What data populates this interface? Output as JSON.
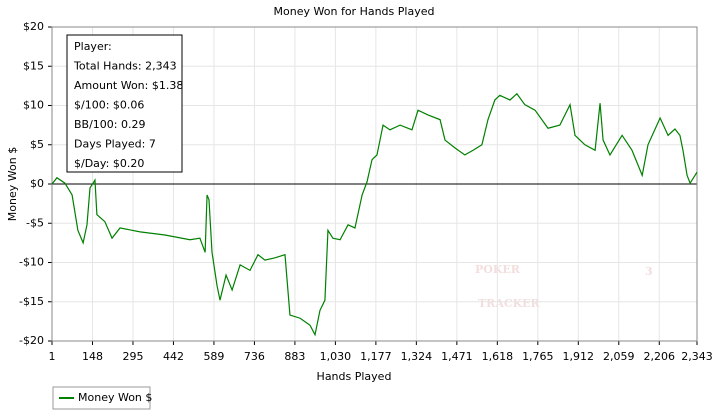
{
  "chart_data": {
    "type": "line",
    "title": "Money Won for Hands Played",
    "x_label": "Hands Played",
    "y_label": "Money Won $",
    "xlim": [
      1,
      2343
    ],
    "xticks": [
      1,
      148,
      295,
      442,
      589,
      736,
      883,
      {
        "value": 1030,
        "label": "1,030"
      },
      {
        "value": 1177,
        "label": "1,177"
      },
      {
        "value": 1324,
        "label": "1,324"
      },
      {
        "value": 1471,
        "label": "1,471"
      },
      {
        "value": 1618,
        "label": "1,618"
      },
      {
        "value": 1765,
        "label": "1,765"
      },
      {
        "value": 1912,
        "label": "1,912"
      },
      {
        "value": 2059,
        "label": "2,059"
      },
      {
        "value": 2206,
        "label": "2,206"
      },
      {
        "value": 2343,
        "label": "2,343"
      }
    ],
    "ylim": [
      -20,
      20
    ],
    "yticks": [
      {
        "value": 20,
        "label": "$20"
      },
      {
        "value": 15,
        "label": "$15"
      },
      {
        "value": 10,
        "label": "$10"
      },
      {
        "value": 5,
        "label": "$5"
      },
      {
        "value": 0,
        "label": "$0"
      },
      {
        "value": -5,
        "label": "-$5"
      },
      {
        "value": -10,
        "label": "-$10"
      },
      {
        "value": -15,
        "label": "-$15"
      },
      {
        "value": -20,
        "label": "-$20"
      }
    ],
    "grid": true,
    "info_box": [
      "Player:",
      "Total Hands: 2,343",
      "Amount Won: $1.38",
      "$/100: $0.06",
      "BB/100: 0.29",
      "Days Played: 7",
      "$/Day: $0.20"
    ],
    "watermark": [
      "POKER",
      "TRACKER",
      "3"
    ],
    "x": [
      1,
      19,
      48,
      74,
      95,
      114,
      128,
      139,
      157,
      164,
      193,
      219,
      248,
      321,
      411,
      502,
      538,
      557,
      564,
      571,
      582,
      600,
      611,
      633,
      655,
      684,
      720,
      749,
      774,
      811,
      847,
      865,
      902,
      938,
      956,
      974,
      992,
      1003,
      1021,
      1047,
      1076,
      1101,
      1127,
      1145,
      1163,
      1181,
      1203,
      1228,
      1265,
      1308,
      1330,
      1366,
      1410,
      1428,
      1464,
      1500,
      1530,
      1562,
      1584,
      1609,
      1627,
      1664,
      1689,
      1718,
      1755,
      1802,
      1845,
      1882,
      1900,
      1936,
      1973,
      1991,
      2002,
      2027,
      2071,
      2107,
      2144,
      2165,
      2209,
      2238,
      2263,
      2281,
      2292,
      2307,
      2318,
      2343
    ],
    "series": [
      {
        "name": "Money Won $",
        "color": "#008000",
        "values": [
          0,
          0.8,
          0.1,
          -1.4,
          -5.9,
          -7.5,
          -5.2,
          -0.5,
          0.5,
          -3.9,
          -4.8,
          -6.9,
          -5.6,
          -6.1,
          -6.5,
          -7.1,
          -6.9,
          -8.7,
          -1.4,
          -2.0,
          -8.7,
          -12.9,
          -14.8,
          -11.6,
          -13.5,
          -10.3,
          -11.0,
          -9.0,
          -9.7,
          -9.4,
          -9.0,
          -16.7,
          -17.1,
          -18.0,
          -19.2,
          -16.1,
          -14.8,
          -5.9,
          -6.9,
          -7.1,
          -5.2,
          -5.6,
          -1.4,
          0.3,
          3.1,
          3.7,
          7.5,
          6.9,
          7.5,
          6.9,
          9.4,
          8.8,
          8.2,
          5.6,
          4.6,
          3.7,
          4.3,
          5.0,
          8.2,
          10.7,
          11.3,
          10.7,
          11.5,
          10.1,
          9.4,
          7.1,
          7.5,
          10.1,
          6.2,
          5.0,
          4.3,
          10.3,
          5.6,
          3.7,
          6.2,
          4.3,
          1.1,
          5.0,
          8.4,
          6.2,
          7.0,
          6.2,
          4.3,
          1.1,
          0.1,
          1.5
        ]
      }
    ]
  }
}
